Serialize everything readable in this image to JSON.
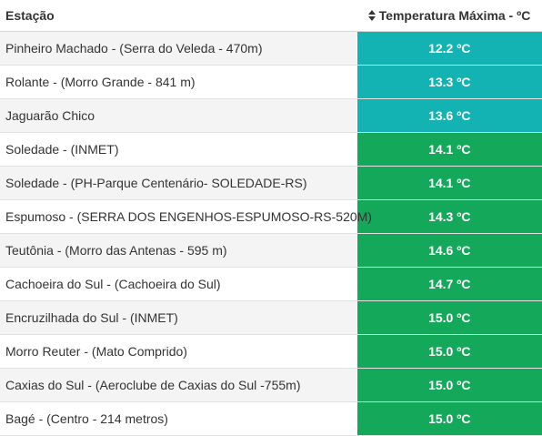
{
  "table": {
    "headers": {
      "station": "Estação",
      "temperature": "Temperatura Máxima - ºC"
    },
    "colors": {
      "cool": "#14b3b3",
      "warm": "#14a85a"
    },
    "rows": [
      {
        "station": "Pinheiro Machado - (Serra do Veleda - 470m)",
        "temp": "12.2 ºC",
        "tone": "cool"
      },
      {
        "station": "Rolante - (Morro Grande - 841 m)",
        "temp": "13.3 ºC",
        "tone": "cool"
      },
      {
        "station": "Jaguarão Chico",
        "temp": "13.6 ºC",
        "tone": "cool"
      },
      {
        "station": "Soledade - (INMET)",
        "temp": "14.1 ºC",
        "tone": "warm"
      },
      {
        "station": "Soledade - (PH-Parque Centenário- SOLEDADE-RS)",
        "temp": "14.1 ºC",
        "tone": "warm"
      },
      {
        "station": "Espumoso - (SERRA DOS ENGENHOS-ESPUMOSO-RS-520M)",
        "temp": "14.3 ºC",
        "tone": "warm"
      },
      {
        "station": "Teutônia - (Morro das Antenas - 595 m)",
        "temp": "14.6 ºC",
        "tone": "warm"
      },
      {
        "station": "Cachoeira do Sul - (Cachoeira do Sul)",
        "temp": "14.7 ºC",
        "tone": "warm"
      },
      {
        "station": "Encruzilhada do Sul - (INMET)",
        "temp": "15.0 ºC",
        "tone": "warm"
      },
      {
        "station": "Morro Reuter - (Mato Comprido)",
        "temp": "15.0 ºC",
        "tone": "warm"
      },
      {
        "station": "Caxias do Sul - (Aeroclube de Caxias do Sul -755m)",
        "temp": "15.0 ºC",
        "tone": "warm"
      },
      {
        "station": "Bagé - (Centro - 214 metros)",
        "temp": "15.0 ºC",
        "tone": "warm"
      }
    ]
  }
}
